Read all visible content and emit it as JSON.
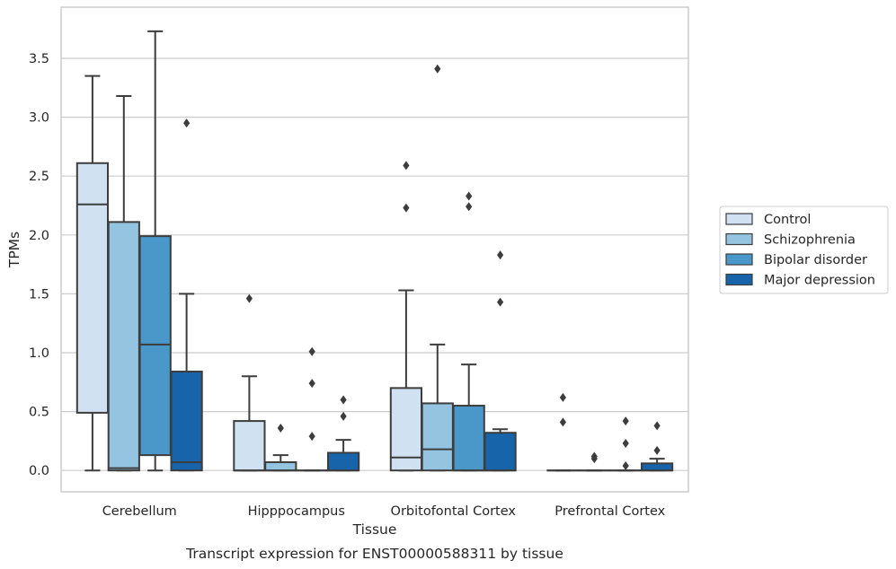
{
  "chart_data": {
    "type": "box",
    "title": "",
    "caption": "Transcript expression for ENST00000588311 by tissue",
    "xlabel": "Tissue",
    "ylabel": "TPMs",
    "ylim": [
      -0.18,
      3.94
    ],
    "yticks": [
      0.0,
      0.5,
      1.0,
      1.5,
      2.0,
      2.5,
      3.0,
      3.5
    ],
    "grid": "horizontal",
    "legend_position": "right",
    "categories": [
      "Cerebellum",
      "Hipppocampus",
      "Orbitofontal Cortex",
      "Prefrontal Cortex"
    ],
    "series": [
      {
        "name": "Control",
        "color": "#d0e1f2",
        "boxes": [
          {
            "whislo": 0.0,
            "q1": 0.49,
            "med": 2.26,
            "q3": 2.61,
            "whishi": 3.35,
            "fliers": []
          },
          {
            "whislo": 0.0,
            "q1": 0.0,
            "med": 0.0,
            "q3": 0.42,
            "whishi": 0.8,
            "fliers": [
              1.46
            ]
          },
          {
            "whislo": 0.0,
            "q1": 0.0,
            "med": 0.11,
            "q3": 0.7,
            "whishi": 1.53,
            "fliers": [
              2.23,
              2.59
            ]
          },
          {
            "whislo": 0.0,
            "q1": 0.0,
            "med": 0.0,
            "q3": 0.0,
            "whishi": 0.0,
            "fliers": [
              0.41,
              0.62
            ]
          }
        ]
      },
      {
        "name": "Schizophrenia",
        "color": "#94c4df",
        "boxes": [
          {
            "whislo": 0.0,
            "q1": 0.0,
            "med": 0.02,
            "q3": 2.11,
            "whishi": 3.18,
            "fliers": []
          },
          {
            "whislo": 0.0,
            "q1": 0.0,
            "med": 0.0,
            "q3": 0.07,
            "whishi": 0.13,
            "fliers": [
              0.36
            ]
          },
          {
            "whislo": 0.0,
            "q1": 0.0,
            "med": 0.18,
            "q3": 0.57,
            "whishi": 1.07,
            "fliers": [
              3.41
            ]
          },
          {
            "whislo": 0.0,
            "q1": 0.0,
            "med": 0.0,
            "q3": 0.0,
            "whishi": 0.0,
            "fliers": [
              0.1,
              0.12
            ]
          }
        ]
      },
      {
        "name": "Bipolar disorder",
        "color": "#4a98c9",
        "boxes": [
          {
            "whislo": 0.0,
            "q1": 0.13,
            "med": 1.07,
            "q3": 1.99,
            "whishi": 3.73,
            "fliers": []
          },
          {
            "whislo": 0.0,
            "q1": 0.0,
            "med": 0.0,
            "q3": 0.0,
            "whishi": 0.0,
            "fliers": [
              0.29,
              0.74,
              1.01
            ]
          },
          {
            "whislo": 0.0,
            "q1": 0.0,
            "med": 0.0,
            "q3": 0.55,
            "whishi": 0.9,
            "fliers": [
              2.24,
              2.33
            ]
          },
          {
            "whislo": 0.0,
            "q1": 0.0,
            "med": 0.0,
            "q3": 0.0,
            "whishi": 0.0,
            "fliers": [
              0.04,
              0.23,
              0.42
            ]
          }
        ]
      },
      {
        "name": "Major depression",
        "color": "#1764ab",
        "boxes": [
          {
            "whislo": 0.0,
            "q1": 0.0,
            "med": 0.07,
            "q3": 0.84,
            "whishi": 1.5,
            "fliers": [
              2.95
            ]
          },
          {
            "whislo": 0.0,
            "q1": 0.0,
            "med": 0.0,
            "q3": 0.15,
            "whishi": 0.26,
            "fliers": [
              0.46,
              0.6
            ]
          },
          {
            "whislo": 0.0,
            "q1": 0.0,
            "med": 0.0,
            "q3": 0.32,
            "whishi": 0.35,
            "fliers": [
              1.43,
              1.83
            ]
          },
          {
            "whislo": 0.0,
            "q1": 0.0,
            "med": 0.0,
            "q3": 0.06,
            "whishi": 0.1,
            "fliers": [
              0.17,
              0.38
            ]
          }
        ]
      }
    ]
  }
}
